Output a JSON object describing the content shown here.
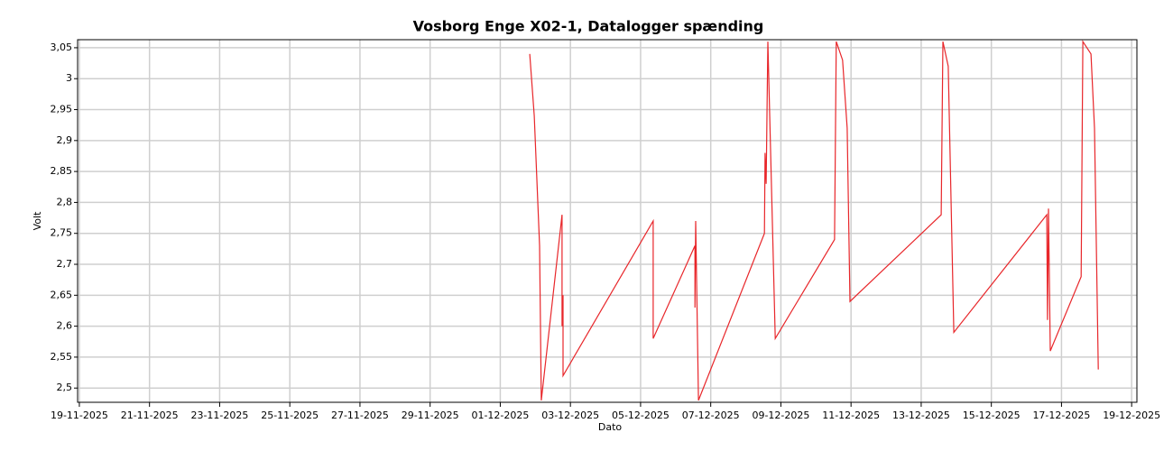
{
  "chart_data": {
    "type": "line",
    "title": "Vosborg Enge X02-1, Datalogger spænding",
    "x_label": "Dato",
    "y_label": "Volt",
    "x": [
      12.84,
      12.97,
      13.12,
      13.17,
      13.76,
      13.76,
      13.79,
      13.79,
      16.36,
      16.36,
      17.55,
      17.55,
      17.57,
      17.65,
      19.53,
      19.55,
      19.58,
      19.63,
      19.84,
      21.53,
      21.58,
      21.76,
      21.89,
      21.97,
      24.57,
      24.62,
      24.77,
      24.93,
      27.58,
      27.6,
      27.63,
      27.68,
      28.56,
      28.61,
      28.84,
      28.94,
      29.05
    ],
    "series": [
      {
        "name": "Volt",
        "color": "#e8262a",
        "values": [
          3.04,
          2.94,
          2.73,
          2.48,
          2.78,
          2.6,
          2.65,
          2.52,
          2.77,
          2.58,
          2.73,
          2.63,
          2.77,
          2.48,
          2.75,
          2.88,
          2.83,
          3.06,
          2.58,
          2.74,
          3.06,
          3.03,
          2.92,
          2.64,
          2.78,
          3.06,
          3.02,
          2.59,
          2.78,
          2.61,
          2.79,
          2.56,
          2.68,
          3.06,
          3.04,
          2.92,
          2.53
        ]
      }
    ],
    "xlim": [
      -0.05,
      30.15
    ],
    "xticks": [
      {
        "value": 0,
        "label": "19-11-2025"
      },
      {
        "value": 2,
        "label": "21-11-2025"
      },
      {
        "value": 4,
        "label": "23-11-2025"
      },
      {
        "value": 6,
        "label": "25-11-2025"
      },
      {
        "value": 8,
        "label": "27-11-2025"
      },
      {
        "value": 10,
        "label": "29-11-2025"
      },
      {
        "value": 12,
        "label": "01-12-2025"
      },
      {
        "value": 14,
        "label": "03-12-2025"
      },
      {
        "value": 16,
        "label": "05-12-2025"
      },
      {
        "value": 18,
        "label": "07-12-2025"
      },
      {
        "value": 20,
        "label": "09-12-2025"
      },
      {
        "value": 22,
        "label": "11-12-2025"
      },
      {
        "value": 24,
        "label": "13-12-2025"
      },
      {
        "value": 26,
        "label": "15-12-2025"
      },
      {
        "value": 28,
        "label": "17-12-2025"
      },
      {
        "value": 30,
        "label": "19-12-2025"
      }
    ],
    "ylim": [
      2.477,
      3.063
    ],
    "yticks": [
      {
        "value": 2.5,
        "label": "2,5"
      },
      {
        "value": 2.55,
        "label": "2,55"
      },
      {
        "value": 2.6,
        "label": "2,6"
      },
      {
        "value": 2.65,
        "label": "2,65"
      },
      {
        "value": 2.7,
        "label": "2,7"
      },
      {
        "value": 2.75,
        "label": "2,75"
      },
      {
        "value": 2.8,
        "label": "2,8"
      },
      {
        "value": 2.85,
        "label": "2,85"
      },
      {
        "value": 2.9,
        "label": "2,9"
      },
      {
        "value": 2.95,
        "label": "2,95"
      },
      {
        "value": 3,
        "label": "3"
      },
      {
        "value": 3.05,
        "label": "3,05"
      }
    ],
    "grid": true
  }
}
